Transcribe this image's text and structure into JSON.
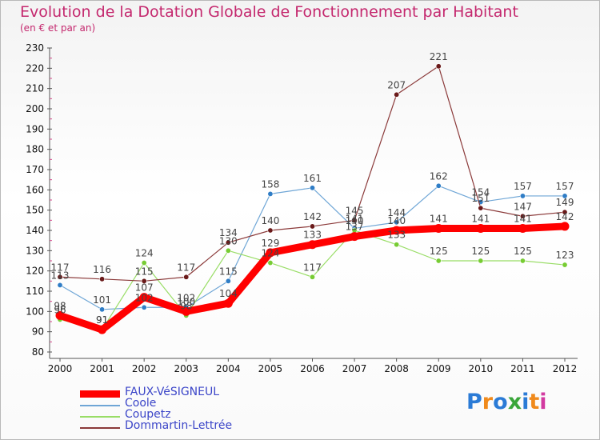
{
  "title": "Evolution de la Dotation Globale de Fonctionnement par Habitant",
  "subtitle": "(en € et par an)",
  "logo": {
    "text": "Proxiti",
    "colors": [
      "#2b7bd6",
      "#f08a1c",
      "#2b7bd6",
      "#3aa63a",
      "#2b7bd6",
      "#f08a1c",
      "#d23aa0"
    ]
  },
  "chart_data": {
    "type": "line",
    "title": "Evolution de la Dotation Globale de Fonctionnement par Habitant",
    "subtitle": "(en € et par an)",
    "x": [
      "2000",
      "2001",
      "2002",
      "2003",
      "2004",
      "2005",
      "2006",
      "2007",
      "2008",
      "2009",
      "2010",
      "2011",
      "2012"
    ],
    "ylim": [
      80,
      230
    ],
    "yticks": [
      80,
      90,
      100,
      110,
      120,
      130,
      140,
      150,
      160,
      170,
      180,
      190,
      200,
      210,
      220,
      230
    ],
    "grid": false,
    "legend_position": "bottom-left",
    "series": [
      {
        "name": "FAUX-VéSIGNEUL",
        "color": "#ff0000",
        "width": 9,
        "marker": false,
        "values": [
          98,
          91,
          107,
          100,
          104,
          129,
          133,
          137,
          140,
          141,
          141,
          141,
          142
        ],
        "labels": [
          "98",
          "91",
          "107",
          "100",
          "104",
          "129",
          "133",
          "137",
          "140",
          "141",
          "141",
          "141",
          "142"
        ]
      },
      {
        "name": "Coole",
        "color": "#6fa6d6",
        "width": 1.2,
        "marker": true,
        "marker_color": "#2f7dc6",
        "values": [
          113,
          101,
          102,
          102,
          115,
          158,
          161,
          141,
          144,
          162,
          154,
          157,
          157
        ],
        "labels": [
          "113",
          "101",
          "102",
          "102",
          "115",
          "158",
          "161",
          "141",
          "144",
          "162",
          "154",
          "157",
          "157"
        ]
      },
      {
        "name": "Coupetz",
        "color": "#99dd66",
        "width": 1.2,
        "marker": true,
        "marker_color": "#77cc33",
        "values": [
          96,
          91,
          124,
          98,
          130,
          124,
          117,
          140,
          133,
          125,
          125,
          125,
          123
        ],
        "labels": [
          "96",
          "91",
          "124",
          "98",
          "130",
          "124",
          "117",
          "140",
          "133",
          "125",
          "125",
          "125",
          "123"
        ]
      },
      {
        "name": "Dommartin-Lettrée",
        "color": "#8b3a3a",
        "width": 1.2,
        "marker": true,
        "marker_color": "#6a1a1a",
        "values": [
          117,
          116,
          115,
          117,
          134,
          140,
          142,
          145,
          207,
          221,
          151,
          147,
          149
        ],
        "labels": [
          "117",
          "116",
          "115",
          "117",
          "134",
          "140",
          "142",
          "145",
          "207",
          "221",
          "151",
          "147",
          "149"
        ]
      }
    ]
  }
}
